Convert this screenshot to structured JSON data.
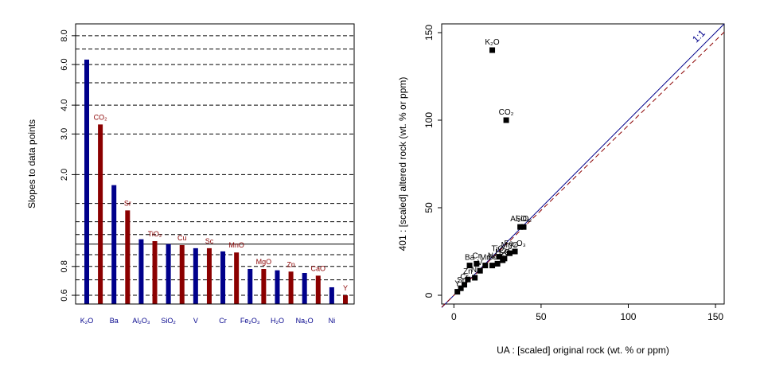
{
  "chart_data": [
    {
      "type": "bar",
      "ylabel": "Slopes to data points",
      "y_scale": "log",
      "yticks": [
        "0.6",
        "0.8",
        "2.0",
        "3.0",
        "4.0",
        "6.0",
        "8.0"
      ],
      "reference_line": 1.0,
      "dashed_lines": [
        0.6,
        0.7,
        0.8,
        0.9,
        1.1,
        1.25,
        1.5,
        2.0,
        3.0,
        4.0,
        5.0,
        6.0,
        7.0,
        8.0
      ],
      "categories": [
        {
          "name": "K₂O",
          "value": 6.3,
          "color": "#00008B",
          "show_xlabel": true,
          "top_label": ""
        },
        {
          "name": "CO₂",
          "value": 3.3,
          "color": "#8B0000",
          "show_xlabel": false,
          "top_label": "CO₂"
        },
        {
          "name": "Ba",
          "value": 1.8,
          "color": "#00008B",
          "show_xlabel": true,
          "top_label": ""
        },
        {
          "name": "Sr",
          "value": 1.4,
          "color": "#8B0000",
          "show_xlabel": false,
          "top_label": "Sr"
        },
        {
          "name": "Al₂O₃",
          "value": 1.05,
          "color": "#00008B",
          "show_xlabel": true,
          "top_label": ""
        },
        {
          "name": "TiO₂",
          "value": 1.03,
          "color": "#8B0000",
          "show_xlabel": false,
          "top_label": "TiO₂"
        },
        {
          "name": "SiO₂",
          "value": 1.0,
          "color": "#00008B",
          "show_xlabel": true,
          "top_label": ""
        },
        {
          "name": "Cu",
          "value": 0.99,
          "color": "#8B0000",
          "show_xlabel": false,
          "top_label": "Cu"
        },
        {
          "name": "V",
          "value": 0.96,
          "color": "#00008B",
          "show_xlabel": true,
          "top_label": ""
        },
        {
          "name": "Sc",
          "value": 0.96,
          "color": "#8B0000",
          "show_xlabel": false,
          "top_label": "Sc"
        },
        {
          "name": "Cr",
          "value": 0.93,
          "color": "#00008B",
          "show_xlabel": true,
          "top_label": ""
        },
        {
          "name": "MnO",
          "value": 0.92,
          "color": "#8B0000",
          "show_xlabel": false,
          "top_label": "MnO"
        },
        {
          "name": "Fe₂O₃",
          "value": 0.78,
          "color": "#00008B",
          "show_xlabel": true,
          "top_label": ""
        },
        {
          "name": "MgO",
          "value": 0.78,
          "color": "#8B0000",
          "show_xlabel": false,
          "top_label": "MgO"
        },
        {
          "name": "H₂O",
          "value": 0.77,
          "color": "#00008B",
          "show_xlabel": true,
          "top_label": ""
        },
        {
          "name": "Zn",
          "value": 0.76,
          "color": "#8B0000",
          "show_xlabel": false,
          "top_label": "Zn"
        },
        {
          "name": "Na₂O",
          "value": 0.75,
          "color": "#00008B",
          "show_xlabel": true,
          "top_label": ""
        },
        {
          "name": "CaO",
          "value": 0.73,
          "color": "#8B0000",
          "show_xlabel": false,
          "top_label": "CaO"
        },
        {
          "name": "Ni",
          "value": 0.65,
          "color": "#00008B",
          "show_xlabel": true,
          "top_label": ""
        },
        {
          "name": "Y",
          "value": 0.6,
          "color": "#8B0000",
          "show_xlabel": false,
          "top_label": "Y"
        }
      ]
    },
    {
      "type": "scatter",
      "xlabel": "UA : [scaled] original rock (wt. % or ppm)",
      "ylabel": "401 : [scaled] altered rock (wt. % or ppm)",
      "xlim": [
        -7,
        155
      ],
      "ylim": [
        -5,
        155
      ],
      "xticks": [
        0,
        50,
        100,
        150
      ],
      "yticks": [
        0,
        50,
        100,
        150
      ],
      "identity_label": "1:1",
      "fit_slope": 0.97,
      "points": [
        {
          "x": 22,
          "y": 140,
          "label": "K₂O"
        },
        {
          "x": 30,
          "y": 100,
          "label": "CO₂"
        },
        {
          "x": 38,
          "y": 39,
          "label": "Al₂O₃"
        },
        {
          "x": 40,
          "y": 39,
          "label": "SiO₂"
        },
        {
          "x": 35,
          "y": 25,
          "label": "Fe₂O₃"
        },
        {
          "x": 32,
          "y": 24,
          "label": "MgO"
        },
        {
          "x": 26,
          "y": 22,
          "label": "TiO₂"
        },
        {
          "x": 29,
          "y": 21,
          "label": "Cu"
        },
        {
          "x": 28,
          "y": 20,
          "label": "H₂O"
        },
        {
          "x": 25,
          "y": 18,
          "label": "Na₂O"
        },
        {
          "x": 22,
          "y": 17,
          "label": "Sc"
        },
        {
          "x": 18,
          "y": 17,
          "label": "Mn"
        },
        {
          "x": 13,
          "y": 18,
          "label": "Cr"
        },
        {
          "x": 9,
          "y": 17,
          "label": "Ba"
        },
        {
          "x": 15,
          "y": 14,
          "label": "V"
        },
        {
          "x": 12,
          "y": 10,
          "label": "Ni"
        },
        {
          "x": 8,
          "y": 9,
          "label": "Zn"
        },
        {
          "x": 6,
          "y": 6,
          "label": "Cr"
        },
        {
          "x": 4,
          "y": 4,
          "label": "Sr"
        },
        {
          "x": 2,
          "y": 2,
          "label": "Y"
        }
      ],
      "visible_point_labels": [
        "K₂O",
        "CO₂",
        "Al₂O₃",
        "SiO₂",
        "Fe₂O₃",
        "MgO",
        "TiO₂",
        "Cu",
        "Na₂O",
        "Ba",
        "Cr",
        "Mn",
        "Zn",
        "Sr",
        "Y"
      ]
    }
  ]
}
